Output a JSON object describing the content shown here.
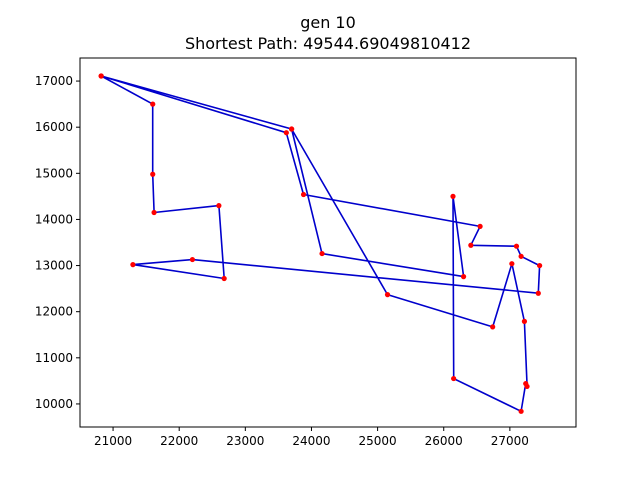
{
  "chart_data": {
    "type": "line",
    "title": "gen 10",
    "subtitle": "Shortest Path: 49544.69049810412",
    "xlabel": "",
    "ylabel": "",
    "xlim": [
      20500,
      28000
    ],
    "ylim": [
      9500,
      17500
    ],
    "x_ticks": [
      21000,
      22000,
      23000,
      24000,
      25000,
      26000,
      27000
    ],
    "y_ticks": [
      10000,
      11000,
      12000,
      13000,
      14000,
      15000,
      16000,
      17000
    ],
    "grid": false,
    "legend": "none",
    "line_color": "#0000cc",
    "point_color": "#ff0000",
    "series": [
      {
        "x": [
          20820,
          21600,
          21600,
          21620,
          22600,
          22680,
          21300,
          22200,
          27430,
          27450,
          27170,
          27100,
          26410,
          26550,
          23880,
          23620,
          20820,
          23700,
          25150,
          26740,
          27030,
          27220,
          27260,
          27240,
          27170,
          26150,
          26140,
          26300,
          24160,
          23700
        ],
        "y": [
          17110,
          16500,
          14980,
          14150,
          14300,
          12720,
          13020,
          13130,
          12400,
          13000,
          13200,
          13420,
          13440,
          13850,
          14540,
          15880,
          17110,
          15960,
          12370,
          11670,
          13040,
          11790,
          10380,
          10440,
          9840,
          10550,
          14500,
          12760,
          13260,
          15960
        ]
      }
    ]
  }
}
